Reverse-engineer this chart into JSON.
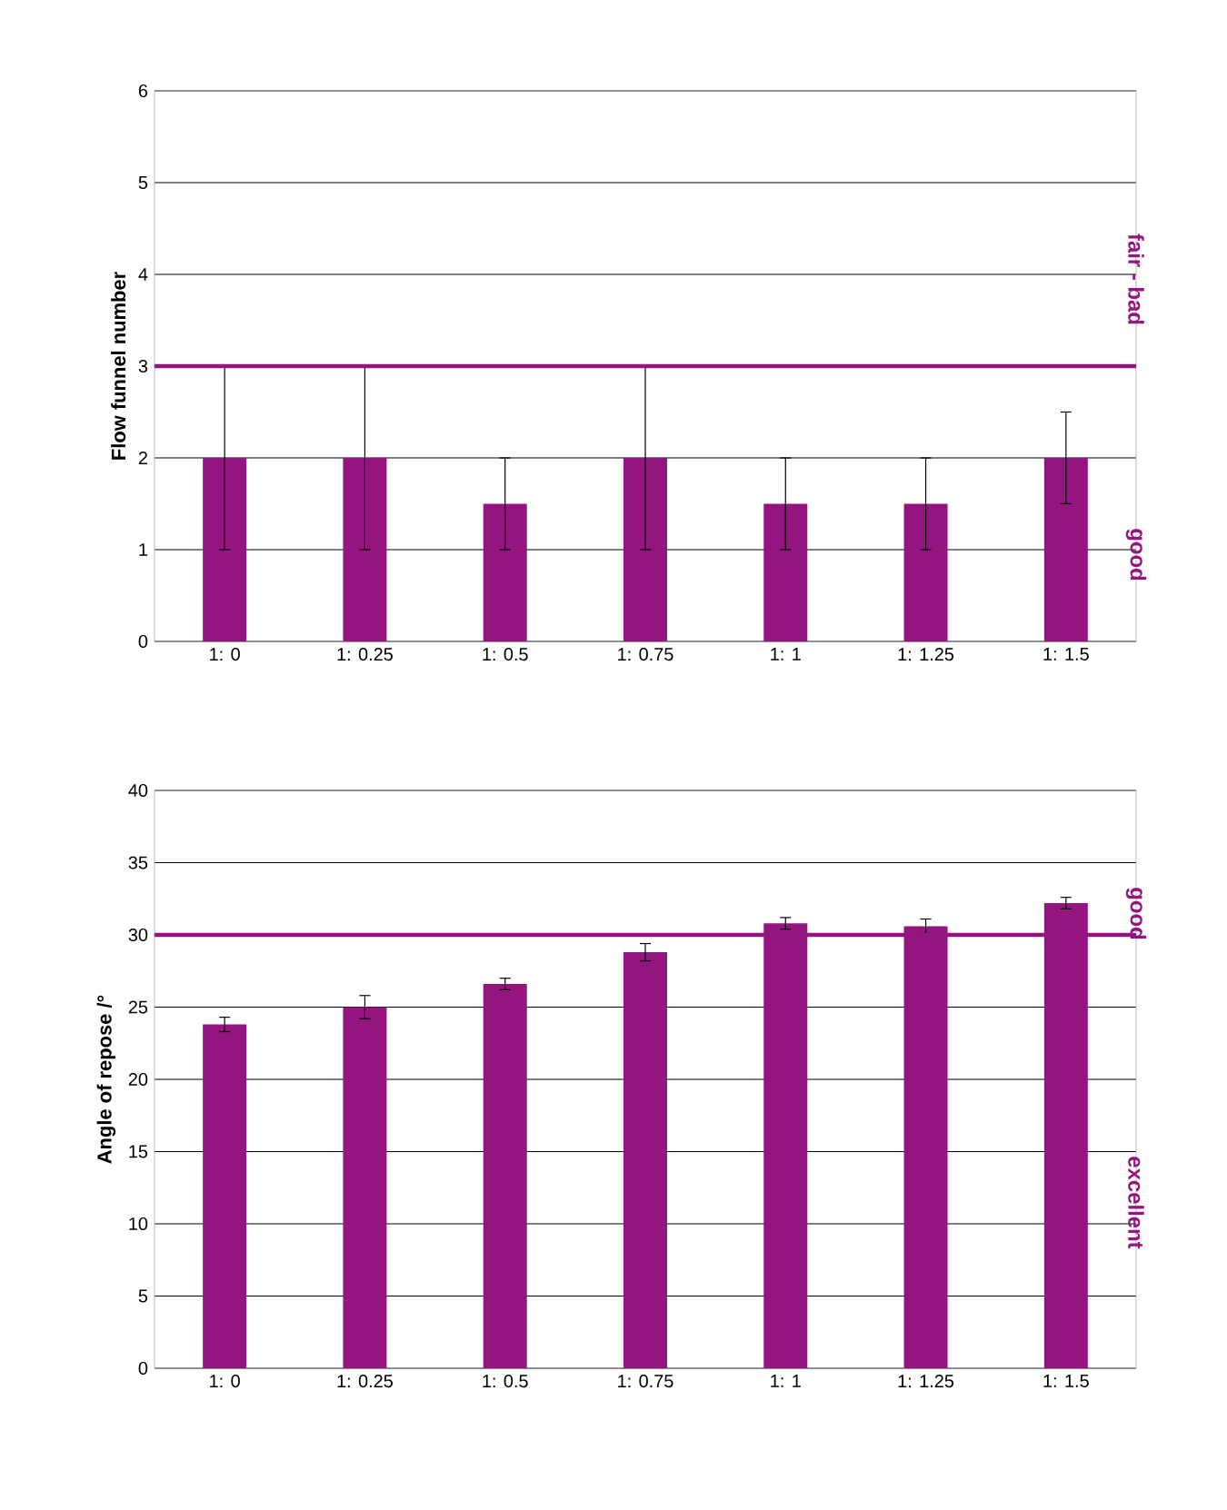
{
  "chart_data": [
    {
      "type": "bar",
      "ylabel": "Flow funnel number",
      "categories": [
        "1: 0",
        "1: 0.25",
        "1: 0.5",
        "1: 0.75",
        "1: 1",
        "1: 1.25",
        "1: 1.5"
      ],
      "values": [
        2,
        2,
        1.5,
        2,
        1.5,
        1.5,
        2
      ],
      "errors": [
        1,
        1,
        0.5,
        1,
        0.5,
        0.5,
        0.5
      ],
      "color": "#941580",
      "ylim": [
        0,
        6
      ],
      "yticks": [
        0,
        1,
        2,
        3,
        4,
        5,
        6
      ],
      "grid": "y",
      "ref_lines": [
        {
          "axis": "y",
          "value": 3,
          "color": "#941580"
        }
      ],
      "annotations": [
        "fair - bad",
        "good"
      ]
    },
    {
      "type": "bar",
      "ylabel": "Angle of repose /°",
      "categories": [
        "1: 0",
        "1: 0.25",
        "1: 0.5",
        "1: 0.75",
        "1: 1",
        "1: 1.25",
        "1: 1.5"
      ],
      "values": [
        23.8,
        25.0,
        26.6,
        28.8,
        30.8,
        30.6,
        32.2
      ],
      "errors": [
        0.5,
        0.8,
        0.4,
        0.6,
        0.4,
        0.5,
        0.4
      ],
      "color": "#941580",
      "ylim": [
        0,
        40
      ],
      "yticks": [
        0,
        5,
        10,
        15,
        20,
        25,
        30,
        35,
        40
      ],
      "grid": "y",
      "ref_lines": [
        {
          "axis": "y",
          "value": 30,
          "color": "#941580"
        }
      ],
      "annotations": [
        "good",
        "excellent"
      ]
    }
  ]
}
